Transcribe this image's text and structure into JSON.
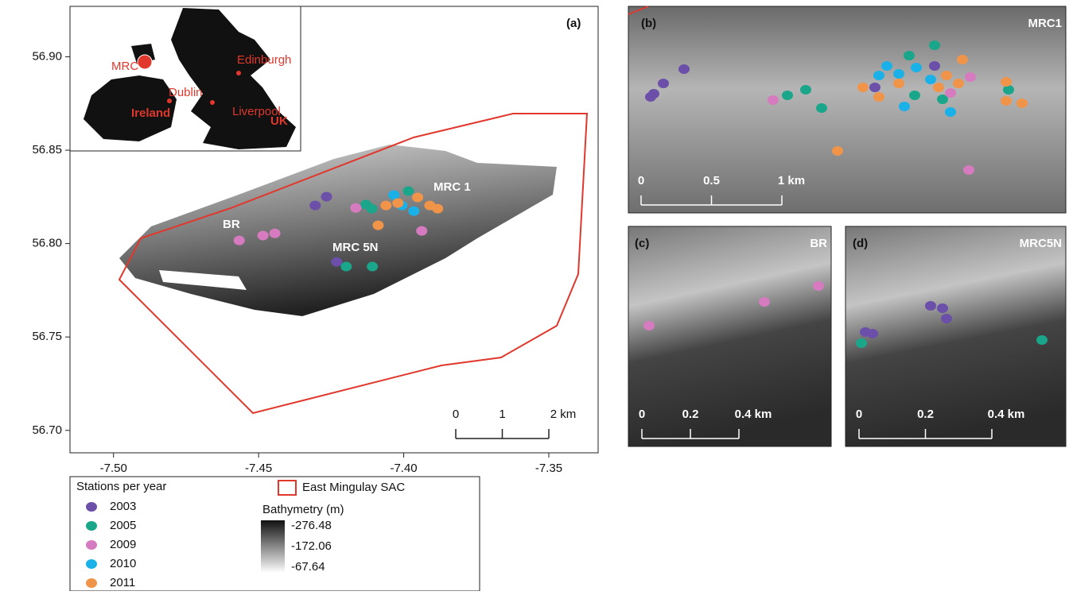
{
  "chart_data": {
    "type": "scatter",
    "title": "(a)",
    "xlim": [
      -7.515,
      -7.333
    ],
    "ylim": [
      56.688,
      56.927
    ],
    "xticks": [
      {
        "value": -7.5,
        "label": "-7.50"
      },
      -7.45,
      {
        "value": -7.4,
        "label": "-7.40"
      },
      -7.35
    ],
    "yticks": [
      {
        "value": 56.7,
        "label": "56.70"
      },
      56.75,
      {
        "value": 56.8,
        "label": "56.80"
      },
      56.85,
      {
        "value": 56.9,
        "label": "56.90"
      }
    ],
    "series": [
      {
        "name": "2003",
        "color": "#6b4fa8",
        "x": [
          -7.4305,
          -7.4266,
          -7.4231
        ],
        "y": [
          56.8204,
          56.8251,
          56.7902
        ]
      },
      {
        "name": "2005",
        "color": "#1aa68a",
        "x": [
          -7.413,
          -7.411,
          -7.4198,
          -7.4108,
          -7.3984
        ],
        "y": [
          56.8209,
          56.8187,
          56.7877,
          56.7877,
          56.8281
        ]
      },
      {
        "name": "2009",
        "color": "#d67bbf",
        "x": [
          -7.4567,
          -7.4485,
          -7.4444,
          -7.4165,
          -7.3938
        ],
        "y": [
          56.8017,
          56.8043,
          56.8055,
          56.8191,
          56.8068
        ]
      },
      {
        "name": "2010",
        "color": "#1ab0e8",
        "x": [
          -7.4034,
          -7.4006,
          -7.3965
        ],
        "y": [
          56.826,
          56.8204,
          56.8174
        ]
      },
      {
        "name": "2011",
        "color": "#f0944a",
        "x": [
          -7.4061,
          -7.402,
          -7.3952,
          -7.391,
          -7.3883,
          -7.4088
        ],
        "y": [
          56.8204,
          56.8217,
          56.8247,
          56.8204,
          56.8187,
          56.8098
        ]
      }
    ],
    "annotations": [
      "MRC 1",
      "BR",
      "MRC 5N"
    ],
    "scale_bar": [
      "0",
      "1",
      "2 km"
    ]
  },
  "inset_map": {
    "labels": [
      "MRC",
      "Edinburgh",
      "Dublin",
      "Ireland",
      "Liverpool",
      "UK"
    ]
  },
  "panels": [
    {
      "tag": "(b)",
      "name": "MRC1",
      "scale_bar": [
        "0",
        "0.5",
        "1 km"
      ]
    },
    {
      "tag": "(c)",
      "name": "BR",
      "scale_bar": [
        "0",
        "0.2",
        "0.4 km"
      ]
    },
    {
      "tag": "(d)",
      "name": "MRC5N",
      "scale_bar": [
        "0",
        "0.2",
        "0.4 km"
      ]
    }
  ],
  "legend": {
    "stations_title": "Stations per year",
    "sac": "East Mingulay SAC",
    "bathymetry_title": "Bathymetry (m)",
    "bathymetry_values": [
      -276.48,
      -172.06,
      -67.64
    ]
  }
}
